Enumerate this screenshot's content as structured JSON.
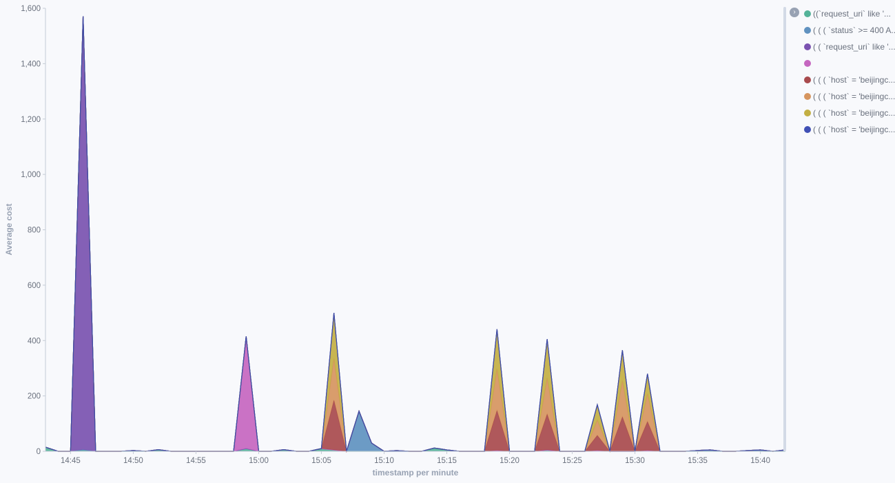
{
  "chart_data": {
    "type": "area",
    "stacked": true,
    "xlabel": "timestamp per minute",
    "ylabel": "Average cost",
    "ylim": [
      0,
      1600
    ],
    "xlim": [
      "14:43",
      "15:42"
    ],
    "y_ticks": [
      "0",
      "200",
      "400",
      "600",
      "800",
      "1,000",
      "1,200",
      "1,400",
      "1,600"
    ],
    "x_ticks": [
      "14:45",
      "14:50",
      "14:55",
      "15:00",
      "15:05",
      "15:10",
      "15:15",
      "15:20",
      "15:25",
      "15:30",
      "15:35",
      "15:40"
    ],
    "x": [
      "14:43",
      "14:44",
      "14:45",
      "14:46",
      "14:47",
      "14:48",
      "14:49",
      "14:50",
      "14:51",
      "14:52",
      "14:53",
      "14:54",
      "14:55",
      "14:56",
      "14:57",
      "14:58",
      "14:59",
      "15:00",
      "15:01",
      "15:02",
      "15:03",
      "15:04",
      "15:05",
      "15:06",
      "15:07",
      "15:08",
      "15:09",
      "15:10",
      "15:11",
      "15:12",
      "15:13",
      "15:14",
      "15:15",
      "15:16",
      "15:17",
      "15:18",
      "15:19",
      "15:20",
      "15:21",
      "15:22",
      "15:23",
      "15:24",
      "15:25",
      "15:26",
      "15:27",
      "15:28",
      "15:29",
      "15:30",
      "15:31",
      "15:32",
      "15:33",
      "15:34",
      "15:35",
      "15:36",
      "15:37",
      "15:38",
      "15:39",
      "15:40",
      "15:41",
      "15:42"
    ],
    "legend_position": "right",
    "series": [
      {
        "name": "((`request_uri` like '...",
        "color": "#54b399",
        "values": [
          15,
          0,
          0,
          3,
          0,
          0,
          0,
          0,
          0,
          3,
          0,
          0,
          0,
          0,
          0,
          0,
          10,
          0,
          0,
          3,
          0,
          0,
          10,
          5,
          0,
          0,
          0,
          0,
          0,
          0,
          0,
          12,
          5,
          0,
          0,
          0,
          3,
          0,
          0,
          0,
          5,
          0,
          0,
          0,
          3,
          0,
          0,
          0,
          3,
          0,
          0,
          0,
          0,
          0,
          0,
          0,
          3,
          0,
          0,
          0
        ]
      },
      {
        "name": "( ( ( `status` >= 400 A...",
        "color": "#6092c0",
        "values": [
          0,
          0,
          0,
          3,
          0,
          0,
          0,
          3,
          0,
          3,
          0,
          0,
          0,
          0,
          0,
          0,
          0,
          0,
          0,
          3,
          0,
          0,
          0,
          0,
          0,
          145,
          30,
          0,
          0,
          0,
          0,
          0,
          0,
          0,
          0,
          0,
          0,
          0,
          0,
          0,
          0,
          0,
          0,
          0,
          0,
          0,
          0,
          0,
          0,
          0,
          0,
          0,
          3,
          5,
          0,
          0,
          0,
          5,
          0,
          5
        ]
      },
      {
        "name": "( ( `request_uri` like '...",
        "color": "#7a52b0",
        "values": [
          0,
          0,
          0,
          1565,
          0,
          0,
          0,
          0,
          0,
          0,
          0,
          0,
          0,
          0,
          0,
          0,
          0,
          0,
          0,
          0,
          0,
          0,
          0,
          0,
          0,
          0,
          0,
          0,
          0,
          0,
          0,
          0,
          0,
          0,
          0,
          0,
          0,
          0,
          0,
          0,
          0,
          0,
          0,
          0,
          0,
          0,
          0,
          0,
          0,
          0,
          0,
          0,
          0,
          0,
          0,
          0,
          0,
          0,
          0,
          0
        ]
      },
      {
        "name": "",
        "color": "#c566c0",
        "values": [
          0,
          0,
          0,
          0,
          0,
          0,
          0,
          0,
          0,
          0,
          0,
          0,
          0,
          0,
          0,
          0,
          405,
          0,
          0,
          0,
          0,
          0,
          0,
          0,
          0,
          0,
          0,
          0,
          3,
          0,
          0,
          0,
          0,
          0,
          0,
          0,
          0,
          0,
          0,
          0,
          0,
          0,
          0,
          0,
          0,
          0,
          0,
          0,
          0,
          0,
          0,
          0,
          0,
          0,
          0,
          0,
          0,
          0,
          0,
          0
        ]
      },
      {
        "name": "( ( ( `host` = 'beijingc...",
        "color": "#a84a4d",
        "values": [
          0,
          0,
          0,
          0,
          0,
          0,
          0,
          0,
          0,
          0,
          0,
          0,
          0,
          0,
          0,
          0,
          0,
          0,
          0,
          0,
          0,
          0,
          0,
          180,
          0,
          0,
          0,
          0,
          0,
          0,
          0,
          0,
          0,
          0,
          0,
          0,
          145,
          0,
          0,
          0,
          130,
          0,
          0,
          0,
          55,
          0,
          125,
          0,
          105,
          0,
          0,
          0,
          0,
          0,
          0,
          0,
          0,
          0,
          0,
          0
        ]
      },
      {
        "name": "( ( ( `host` = 'beijingc...",
        "color": "#d6955f",
        "values": [
          0,
          0,
          0,
          0,
          0,
          0,
          0,
          0,
          0,
          0,
          0,
          0,
          0,
          0,
          0,
          0,
          0,
          0,
          0,
          0,
          0,
          0,
          0,
          150,
          0,
          0,
          0,
          0,
          0,
          0,
          0,
          0,
          0,
          0,
          0,
          0,
          150,
          0,
          0,
          0,
          130,
          0,
          0,
          0,
          55,
          0,
          130,
          0,
          100,
          0,
          0,
          0,
          0,
          0,
          0,
          0,
          0,
          0,
          0,
          0
        ]
      },
      {
        "name": "( ( ( `host` = 'beijingc...",
        "color": "#c3af43",
        "values": [
          0,
          0,
          0,
          0,
          0,
          0,
          0,
          0,
          0,
          0,
          0,
          0,
          0,
          0,
          0,
          0,
          0,
          0,
          0,
          0,
          0,
          0,
          0,
          165,
          0,
          0,
          0,
          0,
          0,
          0,
          0,
          0,
          0,
          0,
          0,
          0,
          143,
          0,
          0,
          0,
          140,
          0,
          0,
          0,
          55,
          0,
          110,
          0,
          72,
          0,
          0,
          0,
          0,
          0,
          0,
          0,
          0,
          0,
          0,
          0
        ]
      },
      {
        "name": "( ( ( `host` = 'beijingc...",
        "color": "#4050b5",
        "values": [
          0,
          0,
          0,
          0,
          0,
          0,
          0,
          0,
          0,
          0,
          0,
          0,
          0,
          0,
          0,
          0,
          0,
          0,
          0,
          0,
          0,
          0,
          0,
          0,
          0,
          0,
          0,
          0,
          0,
          0,
          0,
          0,
          0,
          0,
          0,
          0,
          0,
          0,
          0,
          0,
          0,
          0,
          0,
          0,
          0,
          0,
          0,
          0,
          0,
          0,
          0,
          0,
          0,
          0,
          0,
          0,
          0,
          0,
          0,
          0
        ]
      }
    ]
  }
}
